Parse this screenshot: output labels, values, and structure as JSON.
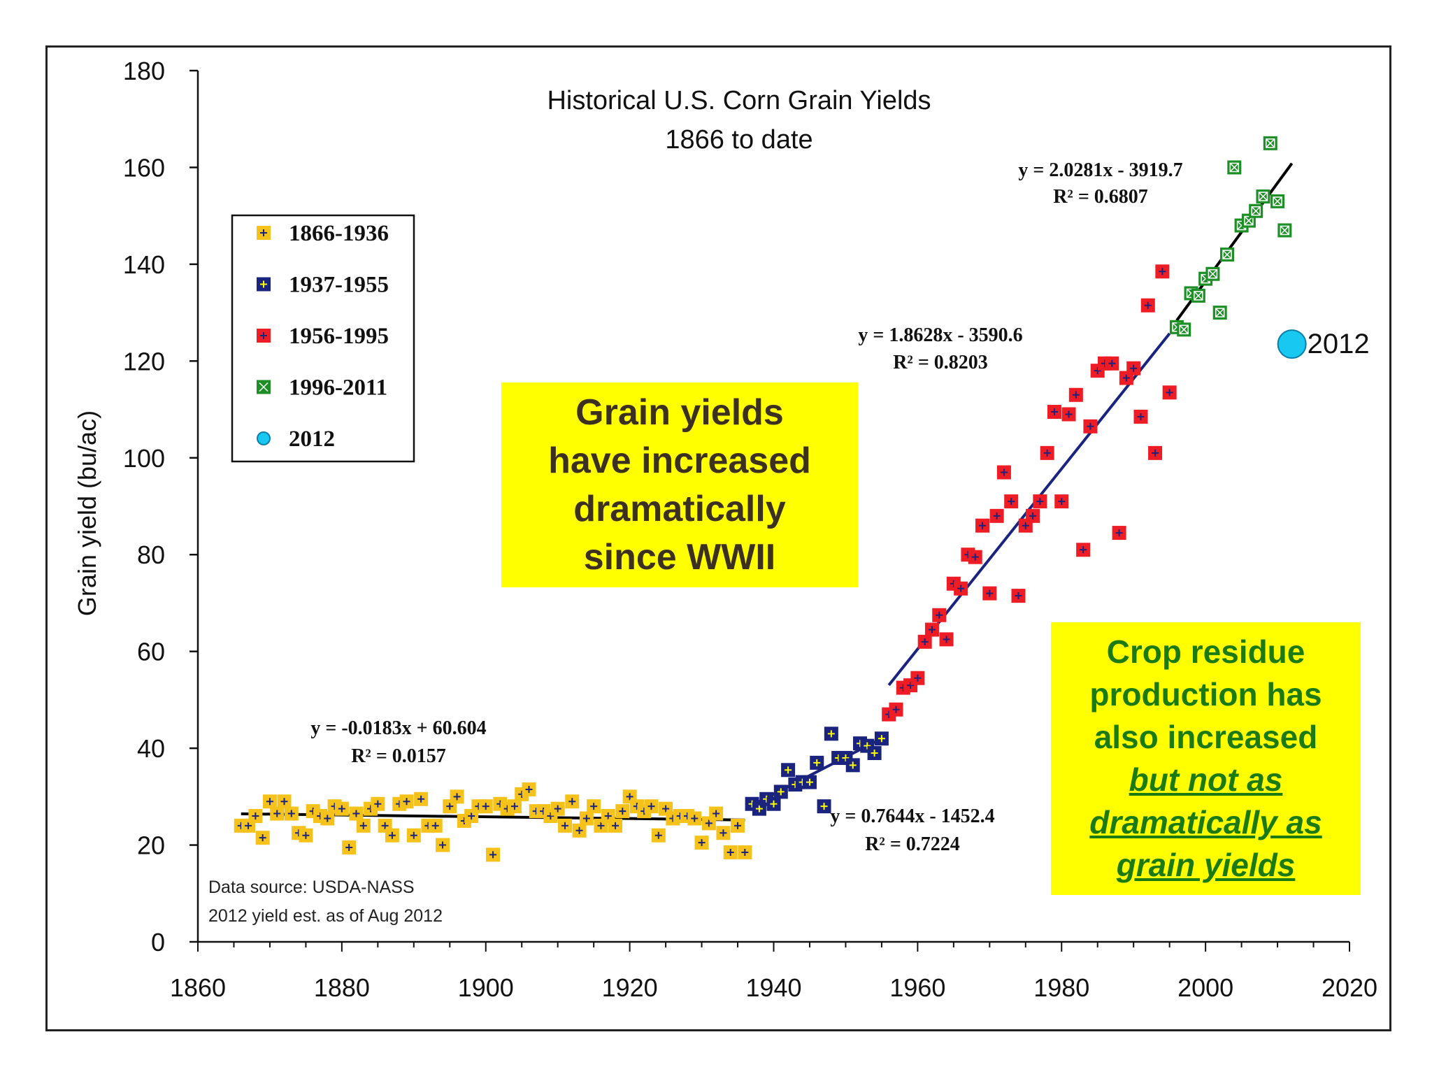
{
  "chart_data": {
    "type": "scatter",
    "title": "Historical U.S. Corn Grain Yields",
    "subtitle": "1866 to date",
    "xlabel": "",
    "ylabel": "Grain yield (bu/ac)",
    "xlim": [
      1860,
      2020
    ],
    "ylim": [
      0,
      180
    ],
    "x_ticks": [
      1860,
      1880,
      1900,
      1920,
      1940,
      1960,
      1980,
      2000,
      2020
    ],
    "y_ticks": [
      0,
      20,
      40,
      60,
      80,
      100,
      120,
      140,
      160,
      180
    ],
    "grid": false,
    "legend_position": "top-left",
    "series": [
      {
        "name": "1866-1936",
        "color": "#f5c21b",
        "marker": "square-plus",
        "mark_color": "#1a237e",
        "points": [
          [
            1866,
            24
          ],
          [
            1867,
            24
          ],
          [
            1868,
            26
          ],
          [
            1869,
            21.5
          ],
          [
            1870,
            29
          ],
          [
            1871,
            26.5
          ],
          [
            1872,
            29
          ],
          [
            1873,
            26.5
          ],
          [
            1874,
            22.5
          ],
          [
            1875,
            22
          ],
          [
            1876,
            27
          ],
          [
            1877,
            26
          ],
          [
            1878,
            25.5
          ],
          [
            1879,
            28
          ],
          [
            1880,
            27.5
          ],
          [
            1881,
            19.5
          ],
          [
            1882,
            26.5
          ],
          [
            1883,
            24
          ],
          [
            1884,
            27.5
          ],
          [
            1885,
            28.5
          ],
          [
            1886,
            24
          ],
          [
            1887,
            22
          ],
          [
            1888,
            28.5
          ],
          [
            1889,
            29
          ],
          [
            1890,
            22
          ],
          [
            1891,
            29.5
          ],
          [
            1892,
            24
          ],
          [
            1893,
            24
          ],
          [
            1894,
            20
          ],
          [
            1895,
            28
          ],
          [
            1896,
            30
          ],
          [
            1897,
            25
          ],
          [
            1898,
            26
          ],
          [
            1899,
            28
          ],
          [
            1900,
            28
          ],
          [
            1901,
            18
          ],
          [
            1902,
            28.5
          ],
          [
            1903,
            27.5
          ],
          [
            1904,
            28
          ],
          [
            1905,
            30.5
          ],
          [
            1906,
            31.5
          ],
          [
            1907,
            27
          ],
          [
            1908,
            27
          ],
          [
            1909,
            26
          ],
          [
            1910,
            27.5
          ],
          [
            1911,
            24
          ],
          [
            1912,
            29
          ],
          [
            1913,
            23
          ],
          [
            1914,
            25.5
          ],
          [
            1915,
            28
          ],
          [
            1916,
            24
          ],
          [
            1917,
            26
          ],
          [
            1918,
            24
          ],
          [
            1919,
            27
          ],
          [
            1920,
            30
          ],
          [
            1921,
            28
          ],
          [
            1922,
            27
          ],
          [
            1923,
            28
          ],
          [
            1924,
            22
          ],
          [
            1925,
            27.5
          ],
          [
            1926,
            25.5
          ],
          [
            1927,
            26
          ],
          [
            1928,
            26
          ],
          [
            1929,
            25.5
          ],
          [
            1930,
            20.5
          ],
          [
            1931,
            24.5
          ],
          [
            1932,
            26.5
          ],
          [
            1933,
            22.5
          ],
          [
            1934,
            18.5
          ],
          [
            1935,
            24
          ],
          [
            1936,
            18.5
          ]
        ]
      },
      {
        "name": "1937-1955",
        "color": "#1a237e",
        "marker": "square-plus",
        "mark_color": "#ffff00",
        "points": [
          [
            1937,
            28.5
          ],
          [
            1938,
            27.5
          ],
          [
            1939,
            29.5
          ],
          [
            1940,
            28.5
          ],
          [
            1941,
            31
          ],
          [
            1942,
            35.5
          ],
          [
            1943,
            32.5
          ],
          [
            1944,
            33
          ],
          [
            1945,
            33
          ],
          [
            1946,
            37
          ],
          [
            1947,
            28
          ],
          [
            1948,
            43
          ],
          [
            1949,
            38
          ],
          [
            1950,
            38
          ],
          [
            1951,
            36.5
          ],
          [
            1952,
            41
          ],
          [
            1953,
            40.5
          ],
          [
            1954,
            39
          ],
          [
            1955,
            42
          ]
        ]
      },
      {
        "name": "1956-1995",
        "color": "#ee1c24",
        "marker": "square-plus",
        "mark_color": "#1a237e",
        "points": [
          [
            1956,
            47
          ],
          [
            1957,
            48
          ],
          [
            1958,
            52.5
          ],
          [
            1959,
            53
          ],
          [
            1960,
            54.5
          ],
          [
            1961,
            62
          ],
          [
            1962,
            64.5
          ],
          [
            1963,
            67.5
          ],
          [
            1964,
            62.5
          ],
          [
            1965,
            74
          ],
          [
            1966,
            73
          ],
          [
            1967,
            80
          ],
          [
            1968,
            79.5
          ],
          [
            1969,
            86
          ],
          [
            1970,
            72
          ],
          [
            1971,
            88
          ],
          [
            1972,
            97
          ],
          [
            1973,
            91
          ],
          [
            1974,
            71.5
          ],
          [
            1975,
            86
          ],
          [
            1976,
            88
          ],
          [
            1977,
            91
          ],
          [
            1978,
            101
          ],
          [
            1979,
            109.5
          ],
          [
            1980,
            91
          ],
          [
            1981,
            109
          ],
          [
            1982,
            113
          ],
          [
            1983,
            81
          ],
          [
            1984,
            106.5
          ],
          [
            1985,
            118
          ],
          [
            1986,
            119.5
          ],
          [
            1987,
            119.5
          ],
          [
            1988,
            84.5
          ],
          [
            1989,
            116.5
          ],
          [
            1990,
            118.5
          ],
          [
            1991,
            108.5
          ],
          [
            1992,
            131.5
          ],
          [
            1993,
            101
          ],
          [
            1994,
            138.5
          ],
          [
            1995,
            113.5
          ]
        ]
      },
      {
        "name": "1996-2011",
        "color": "#1e8f27",
        "marker": "square-x",
        "mark_color": "#ffffff",
        "points": [
          [
            1996,
            127
          ],
          [
            1997,
            126.5
          ],
          [
            1998,
            134
          ],
          [
            1999,
            133.5
          ],
          [
            2000,
            137
          ],
          [
            2001,
            138
          ],
          [
            2002,
            130
          ],
          [
            2003,
            142
          ],
          [
            2004,
            160
          ],
          [
            2005,
            148
          ],
          [
            2006,
            149
          ],
          [
            2007,
            151
          ],
          [
            2008,
            154
          ],
          [
            2009,
            165
          ],
          [
            2010,
            153
          ],
          [
            2011,
            147
          ]
        ]
      },
      {
        "name": "2012",
        "color": "#19c8f0",
        "marker": "circle",
        "points": [
          [
            2012,
            123.5
          ]
        ],
        "point_label": "2012"
      }
    ],
    "trendlines": [
      {
        "name": "1866-1936 trend",
        "color": "#000000",
        "x_range": [
          1866,
          1936
        ],
        "slope": -0.0183,
        "intercept": 60.604,
        "equation": "y = -0.0183x + 60.604",
        "r_squared": "R² = 0.0157"
      },
      {
        "name": "1937-1955 trend",
        "color": "#1a237e",
        "x_range": [
          1937,
          1955
        ],
        "slope": 0.7644,
        "intercept": -1452.4,
        "equation": "y = 0.7644x - 1452.4",
        "r_squared": "R² = 0.7224"
      },
      {
        "name": "1956-1995 trend",
        "color": "#1a237e",
        "x_range": [
          1956,
          1995
        ],
        "slope": 1.8628,
        "intercept": -3590.6,
        "equation": "y = 1.8628x - 3590.6",
        "r_squared": "R² = 0.8203"
      },
      {
        "name": "1996-2011 trend",
        "color": "#000000",
        "x_range": [
          1996,
          2012
        ],
        "slope": 2.0281,
        "intercept": -3919.7,
        "equation": "y = 2.0281x - 3919.7",
        "r_squared": "R² = 0.6807"
      }
    ],
    "source_note": "Data source: USDA-NASS",
    "estimate_note": "2012 yield est. as of Aug 2012"
  },
  "callouts": {
    "grain_lines": [
      "Grain yields",
      "have increased",
      "dramatically",
      "since WWII"
    ],
    "residue_lines": [
      "Crop residue",
      "production has",
      "also increased"
    ],
    "residue_emph_lines": [
      "but not as",
      "dramatically as",
      "grain yields"
    ]
  }
}
